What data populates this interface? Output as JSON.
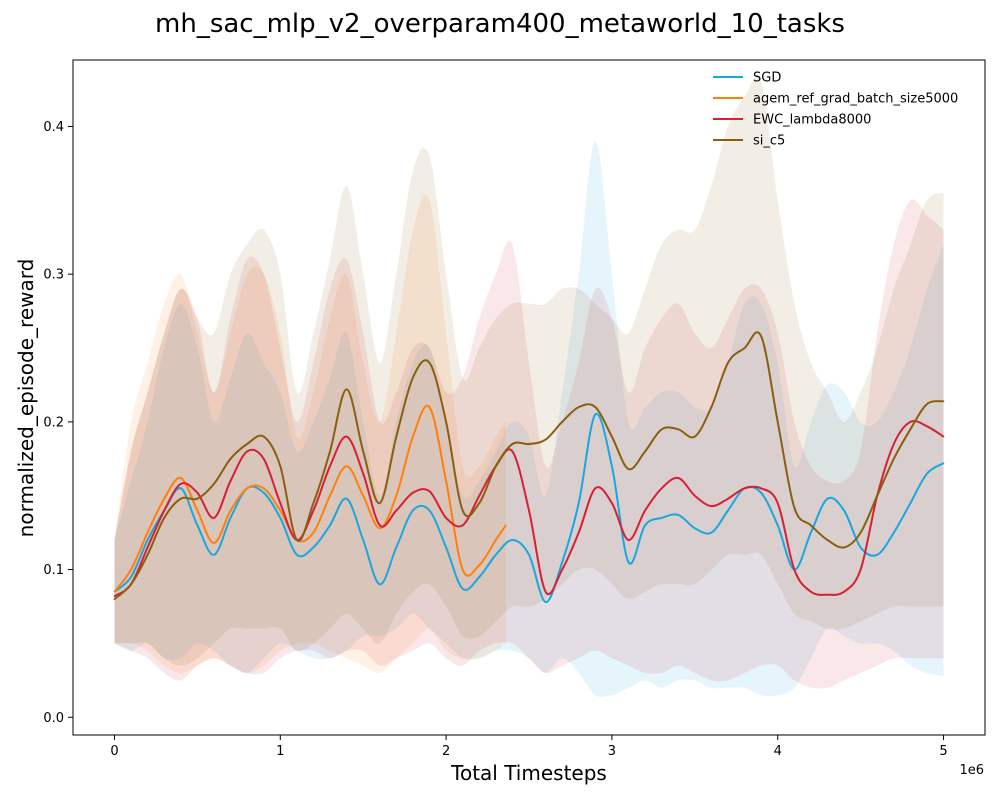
{
  "chart_data": {
    "type": "line",
    "title": "mh_sac_mlp_v2_overparam400_metaworld_10_tasks",
    "xlabel": "Total Timesteps",
    "ylabel": "normalized_episode_reward",
    "x_offset_label": "1e6",
    "xlim": [
      -0.25,
      5.25
    ],
    "ylim": [
      -0.012,
      0.445
    ],
    "x_ticks": [
      0,
      1,
      2,
      3,
      4,
      5
    ],
    "x_tick_labels": [
      "0",
      "1",
      "2",
      "3",
      "4",
      "5"
    ],
    "y_ticks": [
      0.0,
      0.1,
      0.2,
      0.3,
      0.4
    ],
    "y_tick_labels": [
      "0.0",
      "0.1",
      "0.2",
      "0.3",
      "0.4"
    ],
    "grid": false,
    "legend_position": "top-right",
    "series": [
      {
        "name": "SGD",
        "color": "#1aa7e0",
        "x": [
          0,
          0.1,
          0.2,
          0.3,
          0.4,
          0.5,
          0.6,
          0.7,
          0.8,
          0.9,
          1.0,
          1.1,
          1.2,
          1.3,
          1.4,
          1.5,
          1.6,
          1.7,
          1.8,
          1.9,
          2.0,
          2.1,
          2.2,
          2.3,
          2.4,
          2.5,
          2.6,
          2.7,
          2.8,
          2.9,
          3.0,
          3.1,
          3.2,
          3.3,
          3.4,
          3.5,
          3.6,
          3.7,
          3.8,
          3.9,
          4.0,
          4.1,
          4.2,
          4.3,
          4.4,
          4.5,
          4.6,
          4.7,
          4.8,
          4.9,
          5.0
        ],
        "y": [
          0.085,
          0.095,
          0.12,
          0.14,
          0.155,
          0.13,
          0.11,
          0.135,
          0.155,
          0.152,
          0.135,
          0.11,
          0.115,
          0.13,
          0.148,
          0.12,
          0.09,
          0.115,
          0.14,
          0.14,
          0.115,
          0.087,
          0.095,
          0.11,
          0.12,
          0.11,
          0.078,
          0.105,
          0.145,
          0.205,
          0.17,
          0.105,
          0.13,
          0.135,
          0.137,
          0.128,
          0.125,
          0.14,
          0.155,
          0.152,
          0.13,
          0.1,
          0.125,
          0.148,
          0.14,
          0.115,
          0.11,
          0.125,
          0.145,
          0.165,
          0.172
        ],
        "upper": [
          0.12,
          0.16,
          0.2,
          0.25,
          0.28,
          0.25,
          0.2,
          0.23,
          0.26,
          0.24,
          0.22,
          0.18,
          0.2,
          0.23,
          0.26,
          0.2,
          0.15,
          0.2,
          0.24,
          0.25,
          0.2,
          0.15,
          0.16,
          0.18,
          0.2,
          0.19,
          0.15,
          0.22,
          0.3,
          0.39,
          0.3,
          0.2,
          0.21,
          0.22,
          0.22,
          0.21,
          0.21,
          0.24,
          0.28,
          0.28,
          0.24,
          0.17,
          0.2,
          0.225,
          0.22,
          0.2,
          0.2,
          0.22,
          0.25,
          0.29,
          0.32
        ],
        "lower": [
          0.05,
          0.045,
          0.05,
          0.04,
          0.04,
          0.05,
          0.045,
          0.035,
          0.03,
          0.04,
          0.05,
          0.045,
          0.04,
          0.04,
          0.045,
          0.055,
          0.055,
          0.06,
          0.07,
          0.06,
          0.05,
          0.04,
          0.04,
          0.045,
          0.045,
          0.04,
          0.03,
          0.04,
          0.03,
          0.015,
          0.015,
          0.02,
          0.025,
          0.02,
          0.025,
          0.025,
          0.02,
          0.02,
          0.02,
          0.015,
          0.015,
          0.02,
          0.04,
          0.06,
          0.055,
          0.05,
          0.05,
          0.045,
          0.035,
          0.03,
          0.028
        ]
      },
      {
        "name": "agem_ref_grad_batch_size5000",
        "color": "#ff7f0e",
        "x": [
          0,
          0.1,
          0.2,
          0.3,
          0.4,
          0.5,
          0.6,
          0.7,
          0.8,
          0.9,
          1.0,
          1.1,
          1.2,
          1.3,
          1.4,
          1.5,
          1.6,
          1.7,
          1.8,
          1.9,
          2.0,
          2.1,
          2.2,
          2.3,
          2.36
        ],
        "y": [
          0.085,
          0.1,
          0.125,
          0.148,
          0.162,
          0.14,
          0.118,
          0.14,
          0.155,
          0.155,
          0.14,
          0.12,
          0.125,
          0.15,
          0.17,
          0.15,
          0.128,
          0.15,
          0.19,
          0.21,
          0.16,
          0.1,
          0.103,
          0.12,
          0.13
        ],
        "upper": [
          0.12,
          0.2,
          0.24,
          0.28,
          0.3,
          0.26,
          0.22,
          0.26,
          0.3,
          0.3,
          0.26,
          0.19,
          0.22,
          0.27,
          0.3,
          0.24,
          0.2,
          0.26,
          0.33,
          0.35,
          0.26,
          0.17,
          0.17,
          0.19,
          0.2
        ],
        "lower": [
          0.05,
          0.05,
          0.045,
          0.035,
          0.03,
          0.035,
          0.04,
          0.035,
          0.03,
          0.035,
          0.045,
          0.05,
          0.05,
          0.045,
          0.04,
          0.035,
          0.03,
          0.04,
          0.05,
          0.06,
          0.045,
          0.04,
          0.04,
          0.045,
          0.05
        ]
      },
      {
        "name": "EWC_lambda8000",
        "color": "#d62036",
        "x": [
          0,
          0.1,
          0.2,
          0.3,
          0.4,
          0.5,
          0.6,
          0.7,
          0.8,
          0.9,
          1.0,
          1.1,
          1.2,
          1.3,
          1.4,
          1.5,
          1.6,
          1.7,
          1.8,
          1.9,
          2.0,
          2.1,
          2.2,
          2.3,
          2.4,
          2.5,
          2.6,
          2.7,
          2.8,
          2.9,
          3.0,
          3.1,
          3.2,
          3.3,
          3.4,
          3.5,
          3.6,
          3.7,
          3.8,
          3.9,
          4.0,
          4.1,
          4.2,
          4.3,
          4.4,
          4.5,
          4.6,
          4.7,
          4.8,
          4.9,
          5.0
        ],
        "y": [
          0.082,
          0.09,
          0.115,
          0.14,
          0.158,
          0.152,
          0.135,
          0.16,
          0.18,
          0.175,
          0.145,
          0.12,
          0.14,
          0.17,
          0.19,
          0.165,
          0.13,
          0.14,
          0.152,
          0.153,
          0.135,
          0.13,
          0.15,
          0.17,
          0.18,
          0.14,
          0.085,
          0.1,
          0.125,
          0.155,
          0.145,
          0.12,
          0.14,
          0.155,
          0.162,
          0.15,
          0.143,
          0.148,
          0.155,
          0.155,
          0.145,
          0.1,
          0.085,
          0.083,
          0.085,
          0.1,
          0.15,
          0.185,
          0.2,
          0.197,
          0.19
        ],
        "upper": [
          0.12,
          0.18,
          0.22,
          0.26,
          0.29,
          0.27,
          0.22,
          0.27,
          0.31,
          0.3,
          0.25,
          0.2,
          0.24,
          0.29,
          0.31,
          0.26,
          0.2,
          0.22,
          0.25,
          0.25,
          0.22,
          0.23,
          0.27,
          0.3,
          0.32,
          0.24,
          0.17,
          0.2,
          0.24,
          0.29,
          0.27,
          0.22,
          0.25,
          0.27,
          0.28,
          0.26,
          0.25,
          0.27,
          0.29,
          0.29,
          0.26,
          0.2,
          0.17,
          0.16,
          0.16,
          0.18,
          0.26,
          0.32,
          0.35,
          0.34,
          0.33
        ],
        "lower": [
          0.05,
          0.045,
          0.04,
          0.03,
          0.025,
          0.035,
          0.04,
          0.035,
          0.03,
          0.03,
          0.04,
          0.045,
          0.045,
          0.04,
          0.045,
          0.045,
          0.035,
          0.04,
          0.045,
          0.05,
          0.04,
          0.035,
          0.045,
          0.05,
          0.05,
          0.04,
          0.03,
          0.035,
          0.04,
          0.045,
          0.04,
          0.035,
          0.03,
          0.03,
          0.035,
          0.03,
          0.025,
          0.025,
          0.03,
          0.035,
          0.035,
          0.025,
          0.02,
          0.02,
          0.025,
          0.03,
          0.035,
          0.04,
          0.04,
          0.04,
          0.04
        ]
      },
      {
        "name": "si_c5",
        "color": "#8b5e0f",
        "x": [
          0,
          0.1,
          0.2,
          0.3,
          0.4,
          0.5,
          0.6,
          0.7,
          0.8,
          0.9,
          1.0,
          1.1,
          1.2,
          1.3,
          1.4,
          1.5,
          1.6,
          1.7,
          1.8,
          1.9,
          2.0,
          2.1,
          2.2,
          2.3,
          2.4,
          2.5,
          2.6,
          2.7,
          2.8,
          2.9,
          3.0,
          3.1,
          3.2,
          3.3,
          3.4,
          3.5,
          3.6,
          3.7,
          3.8,
          3.9,
          4.0,
          4.1,
          4.2,
          4.3,
          4.4,
          4.5,
          4.6,
          4.7,
          4.8,
          4.9,
          5.0
        ],
        "y": [
          0.08,
          0.09,
          0.11,
          0.135,
          0.148,
          0.148,
          0.158,
          0.175,
          0.185,
          0.19,
          0.17,
          0.12,
          0.145,
          0.18,
          0.222,
          0.18,
          0.145,
          0.19,
          0.23,
          0.24,
          0.2,
          0.14,
          0.145,
          0.17,
          0.185,
          0.185,
          0.188,
          0.2,
          0.21,
          0.21,
          0.19,
          0.168,
          0.18,
          0.195,
          0.195,
          0.19,
          0.21,
          0.24,
          0.25,
          0.258,
          0.2,
          0.142,
          0.13,
          0.12,
          0.115,
          0.125,
          0.15,
          0.175,
          0.195,
          0.212,
          0.214
        ],
        "upper": [
          0.12,
          0.18,
          0.22,
          0.26,
          0.29,
          0.27,
          0.26,
          0.3,
          0.32,
          0.33,
          0.3,
          0.22,
          0.26,
          0.31,
          0.36,
          0.3,
          0.24,
          0.3,
          0.37,
          0.38,
          0.3,
          0.23,
          0.25,
          0.27,
          0.28,
          0.28,
          0.28,
          0.29,
          0.29,
          0.28,
          0.27,
          0.26,
          0.29,
          0.32,
          0.33,
          0.33,
          0.36,
          0.4,
          0.42,
          0.43,
          0.35,
          0.28,
          0.24,
          0.22,
          0.2,
          0.22,
          0.25,
          0.29,
          0.32,
          0.35,
          0.355
        ],
        "lower": [
          0.05,
          0.05,
          0.05,
          0.04,
          0.035,
          0.04,
          0.05,
          0.06,
          0.06,
          0.06,
          0.06,
          0.045,
          0.05,
          0.06,
          0.07,
          0.06,
          0.05,
          0.07,
          0.085,
          0.09,
          0.075,
          0.055,
          0.055,
          0.065,
          0.075,
          0.075,
          0.08,
          0.09,
          0.1,
          0.1,
          0.09,
          0.08,
          0.085,
          0.09,
          0.09,
          0.09,
          0.1,
          0.11,
          0.11,
          0.11,
          0.09,
          0.07,
          0.065,
          0.06,
          0.06,
          0.065,
          0.07,
          0.075,
          0.075,
          0.075,
          0.075
        ]
      }
    ]
  }
}
